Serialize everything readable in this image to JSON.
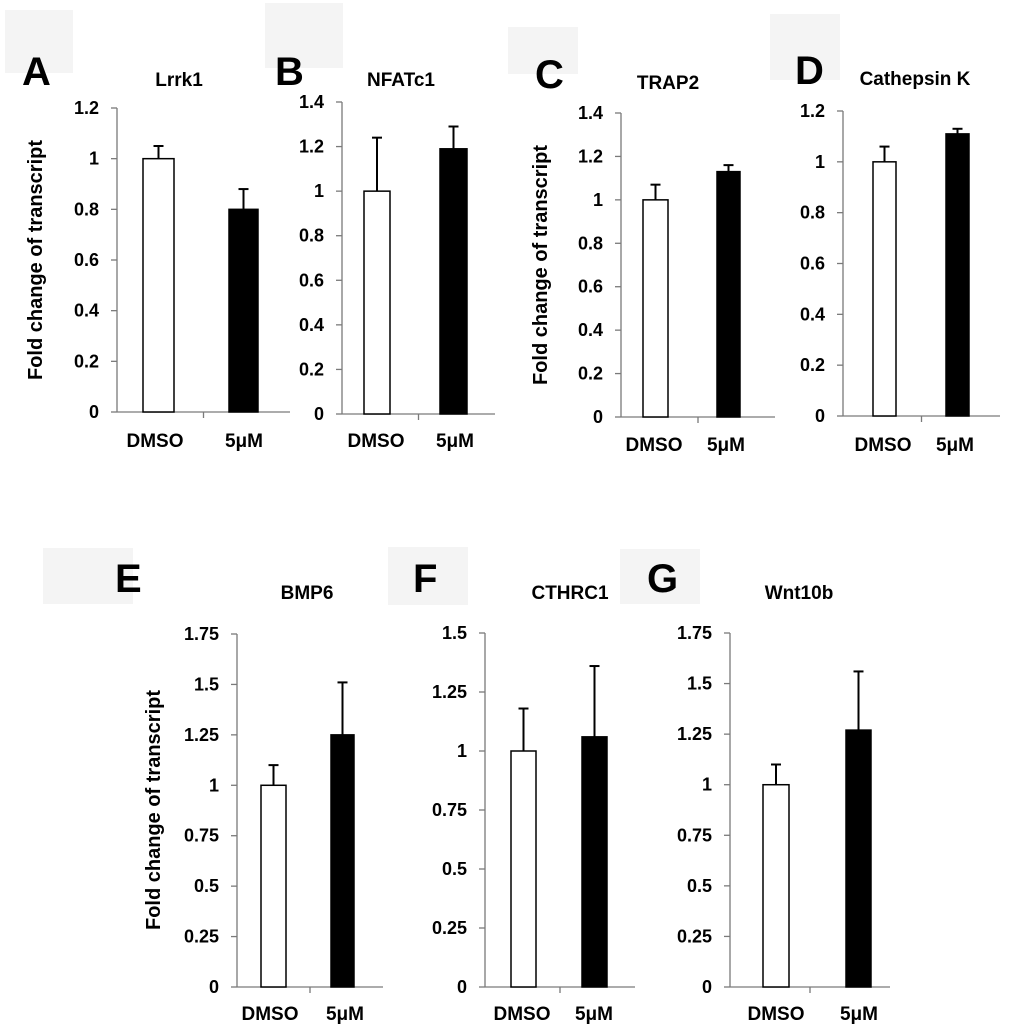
{
  "figure": {
    "ylabel": "Fold change of transcript"
  },
  "chart_data": [
    {
      "panel": "A",
      "type": "bar",
      "title": "Lrrk1",
      "categories": [
        "DMSO",
        "5μM"
      ],
      "values": [
        1.0,
        0.8
      ],
      "errors": [
        0.05,
        0.08
      ],
      "colors": [
        "#ffffff",
        "#000000"
      ],
      "ylim": [
        0,
        1.2
      ],
      "yticks": [
        "0",
        "0.2",
        "0.4",
        "0.6",
        "0.8",
        "1",
        "1.2"
      ],
      "xlabel": "",
      "ylabel": "Fold change of transcript"
    },
    {
      "panel": "B",
      "type": "bar",
      "title": "NFATc1",
      "categories": [
        "DMSO",
        "5μM"
      ],
      "values": [
        1.0,
        1.19
      ],
      "errors": [
        0.24,
        0.1
      ],
      "colors": [
        "#ffffff",
        "#000000"
      ],
      "ylim": [
        0,
        1.4
      ],
      "yticks": [
        "0",
        "0.2",
        "0.4",
        "0.6",
        "0.8",
        "1",
        "1.2",
        "1.4"
      ],
      "xlabel": "",
      "ylabel": ""
    },
    {
      "panel": "C",
      "type": "bar",
      "title": "TRAP2",
      "categories": [
        "DMSO",
        "5μM"
      ],
      "values": [
        1.0,
        1.13
      ],
      "errors": [
        0.07,
        0.03
      ],
      "colors": [
        "#ffffff",
        "#000000"
      ],
      "ylim": [
        0,
        1.4
      ],
      "yticks": [
        "0",
        "0.2",
        "0.4",
        "0.6",
        "0.8",
        "1",
        "1.2",
        "1.4"
      ],
      "xlabel": "",
      "ylabel": "Fold change of transcript"
    },
    {
      "panel": "D",
      "type": "bar",
      "title": "Cathepsin K",
      "categories": [
        "DMSO",
        "5μM"
      ],
      "values": [
        1.0,
        1.11
      ],
      "errors": [
        0.06,
        0.02
      ],
      "colors": [
        "#ffffff",
        "#000000"
      ],
      "ylim": [
        0,
        1.2
      ],
      "yticks": [
        "0",
        "0.2",
        "0.4",
        "0.6",
        "0.8",
        "1",
        "1.2"
      ],
      "xlabel": "",
      "ylabel": ""
    },
    {
      "panel": "E",
      "type": "bar",
      "title": "BMP6",
      "categories": [
        "DMSO",
        "5μM"
      ],
      "values": [
        1.0,
        1.25
      ],
      "errors": [
        0.1,
        0.26
      ],
      "colors": [
        "#ffffff",
        "#000000"
      ],
      "ylim": [
        0,
        1.75
      ],
      "yticks": [
        "0",
        "0.25",
        "0.5",
        "0.75",
        "1",
        "1.25",
        "1.5",
        "1.75"
      ],
      "xlabel": "",
      "ylabel": "Fold change of transcript"
    },
    {
      "panel": "F",
      "type": "bar",
      "title": "CTHRC1",
      "categories": [
        "DMSO",
        "5μM"
      ],
      "values": [
        1.0,
        1.06
      ],
      "errors": [
        0.18,
        0.3
      ],
      "colors": [
        "#ffffff",
        "#000000"
      ],
      "ylim": [
        0,
        1.5
      ],
      "yticks": [
        "0",
        "0.25",
        "0.5",
        "0.75",
        "1",
        "1.25",
        "1.5"
      ],
      "xlabel": "",
      "ylabel": ""
    },
    {
      "panel": "G",
      "type": "bar",
      "title": "Wnt10b",
      "categories": [
        "DMSO",
        "5μM"
      ],
      "values": [
        1.0,
        1.27
      ],
      "errors": [
        0.1,
        0.29
      ],
      "colors": [
        "#ffffff",
        "#000000"
      ],
      "ylim": [
        0,
        1.75
      ],
      "yticks": [
        "0",
        "0.25",
        "0.5",
        "0.75",
        "1",
        "1.25",
        "1.5",
        "1.75"
      ],
      "xlabel": "",
      "ylabel": ""
    }
  ]
}
